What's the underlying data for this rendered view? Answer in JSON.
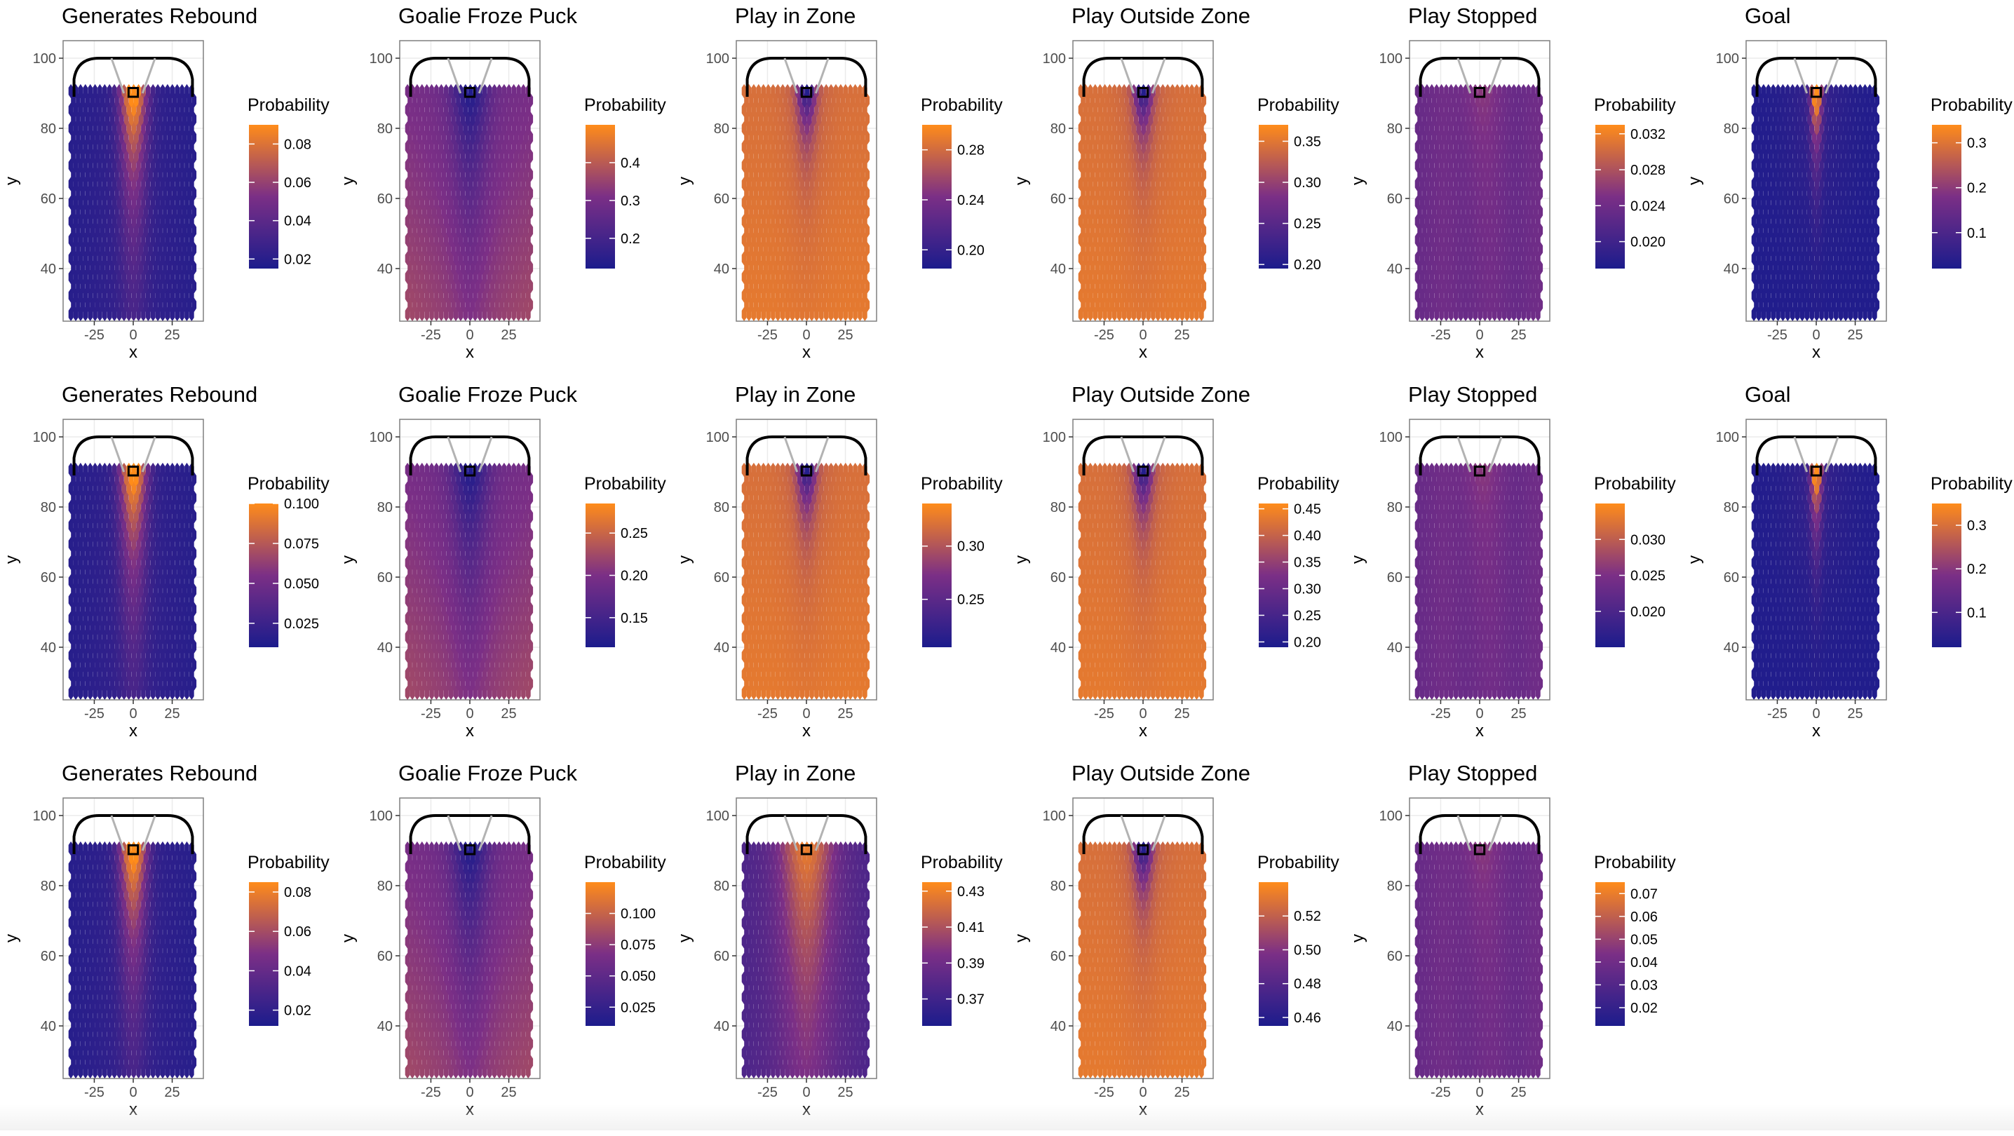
{
  "colors": {
    "low": "#1c1c8c",
    "mid": "#7b2f86",
    "high": "#ff8c1a",
    "panel_border": "#7f7f7f",
    "grid": "#ebebeb",
    "rink_line": "#000000",
    "crease_line": "#b3b3b3"
  },
  "chart_data": [
    {
      "type": "heatmap",
      "title": "Generates Rebound",
      "xlabel": "x",
      "ylabel": "y",
      "xticks": [
        "-25",
        "0",
        "25"
      ],
      "yticks": [
        "40",
        "60",
        "80",
        "100"
      ],
      "xlim": [
        -45,
        45
      ],
      "ylim": [
        25,
        105
      ],
      "legend_title": "Probability",
      "legend_ticks": [
        "0.02",
        "0.04",
        "0.06",
        "0.08"
      ],
      "legend_range": [
        0.015,
        0.09
      ],
      "pattern": "slot",
      "hot_spots": []
    },
    {
      "type": "heatmap",
      "title": "Goalie Froze Puck",
      "xlabel": "x",
      "ylabel": "y",
      "xticks": [
        "-25",
        "0",
        "25"
      ],
      "yticks": [
        "40",
        "60",
        "80",
        "100"
      ],
      "xlim": [
        -45,
        45
      ],
      "ylim": [
        25,
        105
      ],
      "legend_title": "Probability",
      "legend_ticks": [
        "0.2",
        "0.3",
        "0.4"
      ],
      "legend_range": [
        0.12,
        0.5
      ],
      "pattern": "froze",
      "hot_spots": []
    },
    {
      "type": "heatmap",
      "title": "Play in Zone",
      "xlabel": "x",
      "ylabel": "y",
      "xticks": [
        "-25",
        "0",
        "25"
      ],
      "yticks": [
        "40",
        "60",
        "80",
        "100"
      ],
      "xlim": [
        -45,
        45
      ],
      "ylim": [
        25,
        105
      ],
      "legend_title": "Probability",
      "legend_ticks": [
        "0.20",
        "0.24",
        "0.28"
      ],
      "legend_range": [
        0.185,
        0.3
      ],
      "pattern": "zone",
      "hot_spots": []
    },
    {
      "type": "heatmap",
      "title": "Play Outside Zone",
      "xlabel": "x",
      "ylabel": "y",
      "xticks": [
        "-25",
        "0",
        "25"
      ],
      "yticks": [
        "40",
        "60",
        "80",
        "100"
      ],
      "xlim": [
        -45,
        45
      ],
      "ylim": [
        25,
        105
      ],
      "legend_title": "Probability",
      "legend_ticks": [
        "0.20",
        "0.25",
        "0.30",
        "0.35"
      ],
      "legend_range": [
        0.195,
        0.37
      ],
      "pattern": "zone",
      "hot_spots": []
    },
    {
      "type": "heatmap",
      "title": "Play Stopped",
      "xlabel": "x",
      "ylabel": "y",
      "xticks": [
        "-25",
        "0",
        "25"
      ],
      "yticks": [
        "40",
        "60",
        "80",
        "100"
      ],
      "xlim": [
        -45,
        45
      ],
      "ylim": [
        25,
        105
      ],
      "legend_title": "Probability",
      "legend_ticks": [
        "0.020",
        "0.024",
        "0.028",
        "0.032"
      ],
      "legend_range": [
        0.017,
        0.033
      ],
      "pattern": "stopped",
      "hot_spots": []
    },
    {
      "type": "heatmap",
      "title": "Goal",
      "xlabel": "x",
      "ylabel": "y",
      "xticks": [
        "-25",
        "0",
        "25"
      ],
      "yticks": [
        "40",
        "60",
        "80",
        "100"
      ],
      "xlim": [
        -45,
        45
      ],
      "ylim": [
        25,
        105
      ],
      "legend_title": "Probability",
      "legend_ticks": [
        "0.1",
        "0.2",
        "0.3"
      ],
      "legend_range": [
        0.02,
        0.34
      ],
      "pattern": "goal",
      "hot_spots": []
    },
    {
      "type": "heatmap",
      "title": "Generates Rebound",
      "xlabel": "x",
      "ylabel": "y",
      "xticks": [
        "-25",
        "0",
        "25"
      ],
      "yticks": [
        "40",
        "60",
        "80",
        "100"
      ],
      "xlim": [
        -45,
        45
      ],
      "ylim": [
        25,
        105
      ],
      "legend_title": "Probability",
      "legend_ticks": [
        "0.025",
        "0.050",
        "0.075",
        "0.100"
      ],
      "legend_range": [
        0.01,
        0.1
      ],
      "pattern": "slot",
      "hot_spots": []
    },
    {
      "type": "heatmap",
      "title": "Goalie Froze Puck",
      "xlabel": "x",
      "ylabel": "y",
      "xticks": [
        "-25",
        "0",
        "25"
      ],
      "yticks": [
        "40",
        "60",
        "80",
        "100"
      ],
      "xlim": [
        -45,
        45
      ],
      "ylim": [
        25,
        105
      ],
      "legend_title": "Probability",
      "legend_ticks": [
        "0.15",
        "0.20",
        "0.25"
      ],
      "legend_range": [
        0.115,
        0.285
      ],
      "pattern": "froze",
      "hot_spots": []
    },
    {
      "type": "heatmap",
      "title": "Play in Zone",
      "xlabel": "x",
      "ylabel": "y",
      "xticks": [
        "-25",
        "0",
        "25"
      ],
      "yticks": [
        "40",
        "60",
        "80",
        "100"
      ],
      "xlim": [
        -45,
        45
      ],
      "ylim": [
        25,
        105
      ],
      "legend_title": "Probability",
      "legend_ticks": [
        "0.25",
        "0.30"
      ],
      "legend_range": [
        0.205,
        0.34
      ],
      "pattern": "zone",
      "hot_spots": []
    },
    {
      "type": "heatmap",
      "title": "Play Outside Zone",
      "xlabel": "x",
      "ylabel": "y",
      "xticks": [
        "-25",
        "0",
        "25"
      ],
      "yticks": [
        "40",
        "60",
        "80",
        "100"
      ],
      "xlim": [
        -45,
        45
      ],
      "ylim": [
        25,
        105
      ],
      "legend_title": "Probability",
      "legend_ticks": [
        "0.20",
        "0.25",
        "0.30",
        "0.35",
        "0.40",
        "0.45"
      ],
      "legend_range": [
        0.19,
        0.46
      ],
      "pattern": "zone",
      "hot_spots": []
    },
    {
      "type": "heatmap",
      "title": "Play Stopped",
      "xlabel": "x",
      "ylabel": "y",
      "xticks": [
        "-25",
        "0",
        "25"
      ],
      "yticks": [
        "40",
        "60",
        "80",
        "100"
      ],
      "xlim": [
        -45,
        45
      ],
      "ylim": [
        25,
        105
      ],
      "legend_title": "Probability",
      "legend_ticks": [
        "0.020",
        "0.025",
        "0.030"
      ],
      "legend_range": [
        0.015,
        0.035
      ],
      "pattern": "stopped",
      "hot_spots": []
    },
    {
      "type": "heatmap",
      "title": "Goal",
      "xlabel": "x",
      "ylabel": "y",
      "xticks": [
        "-25",
        "0",
        "25"
      ],
      "yticks": [
        "40",
        "60",
        "80",
        "100"
      ],
      "xlim": [
        -45,
        45
      ],
      "ylim": [
        25,
        105
      ],
      "legend_title": "Probability",
      "legend_ticks": [
        "0.1",
        "0.2",
        "0.3"
      ],
      "legend_range": [
        0.02,
        0.35
      ],
      "pattern": "goal",
      "hot_spots": []
    },
    {
      "type": "heatmap",
      "title": "Generates Rebound",
      "xlabel": "x",
      "ylabel": "y",
      "xticks": [
        "-25",
        "0",
        "25"
      ],
      "yticks": [
        "40",
        "60",
        "80",
        "100"
      ],
      "xlim": [
        -45,
        45
      ],
      "ylim": [
        25,
        105
      ],
      "legend_title": "Probability",
      "legend_ticks": [
        "0.02",
        "0.04",
        "0.06",
        "0.08"
      ],
      "legend_range": [
        0.012,
        0.085
      ],
      "pattern": "slot",
      "hot_spots": []
    },
    {
      "type": "heatmap",
      "title": "Goalie Froze Puck",
      "xlabel": "x",
      "ylabel": "y",
      "xticks": [
        "-25",
        "0",
        "25"
      ],
      "yticks": [
        "40",
        "60",
        "80",
        "100"
      ],
      "xlim": [
        -45,
        45
      ],
      "ylim": [
        25,
        105
      ],
      "legend_title": "Probability",
      "legend_ticks": [
        "0.025",
        "0.050",
        "0.075",
        "0.100"
      ],
      "legend_range": [
        0.01,
        0.125
      ],
      "pattern": "froze",
      "hot_spots": []
    },
    {
      "type": "heatmap",
      "title": "Play in Zone",
      "xlabel": "x",
      "ylabel": "y",
      "xticks": [
        "-25",
        "0",
        "25"
      ],
      "yticks": [
        "40",
        "60",
        "80",
        "100"
      ],
      "xlim": [
        -45,
        45
      ],
      "ylim": [
        25,
        105
      ],
      "legend_title": "Probability",
      "legend_ticks": [
        "0.37",
        "0.39",
        "0.41",
        "0.43"
      ],
      "legend_range": [
        0.355,
        0.435
      ],
      "pattern": "zone3",
      "hot_spots": []
    },
    {
      "type": "heatmap",
      "title": "Play Outside Zone",
      "xlabel": "x",
      "ylabel": "y",
      "xticks": [
        "-25",
        "0",
        "25"
      ],
      "yticks": [
        "40",
        "60",
        "80",
        "100"
      ],
      "xlim": [
        -45,
        45
      ],
      "ylim": [
        25,
        105
      ],
      "legend_title": "Probability",
      "legend_ticks": [
        "0.46",
        "0.48",
        "0.50",
        "0.52"
      ],
      "legend_range": [
        0.455,
        0.54
      ],
      "pattern": "zone",
      "hot_spots": []
    },
    {
      "type": "heatmap",
      "title": "Play Stopped",
      "xlabel": "x",
      "ylabel": "y",
      "xticks": [
        "-25",
        "0",
        "25"
      ],
      "yticks": [
        "40",
        "60",
        "80",
        "100"
      ],
      "xlim": [
        -45,
        45
      ],
      "ylim": [
        25,
        105
      ],
      "legend_title": "Probability",
      "legend_ticks": [
        "0.02",
        "0.03",
        "0.04",
        "0.05",
        "0.06",
        "0.07"
      ],
      "legend_range": [
        0.012,
        0.075
      ],
      "pattern": "stopped",
      "hot_spots": []
    }
  ]
}
